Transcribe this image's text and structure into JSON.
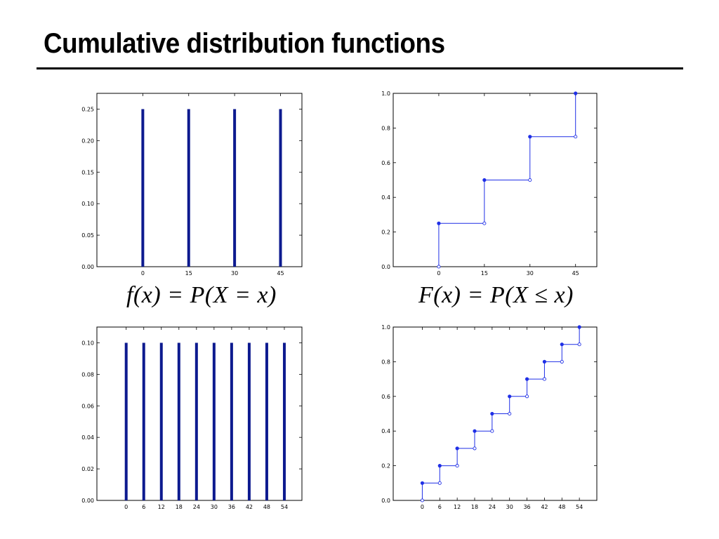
{
  "slide": {
    "title": "Cumulative distribution functions",
    "pmf_formula": "f(x) = P(X = x)",
    "cdf_formula": "F(x) = P(X ≤ x)"
  },
  "colors": {
    "bar": "#0d1a8f",
    "step": "#1f2fe6",
    "axis": "#000000"
  },
  "chart_data": [
    {
      "id": "pmf-top",
      "type": "bar",
      "x": [
        0,
        15,
        30,
        45
      ],
      "values": [
        0.25,
        0.25,
        0.25,
        0.25
      ],
      "xlim": [
        -15,
        52
      ],
      "ylim": [
        0,
        0.275
      ],
      "xticks": [
        0,
        15,
        30,
        45
      ],
      "yticks": [
        0,
        0.05,
        0.1,
        0.15,
        0.2,
        0.25
      ],
      "ydecimals": 2,
      "grid": false
    },
    {
      "id": "cdf-top",
      "type": "line",
      "x": [
        0,
        15,
        30,
        45
      ],
      "values": [
        0.25,
        0.5,
        0.75,
        1.0
      ],
      "xlim": [
        -15,
        52
      ],
      "ylim": [
        0,
        1.0
      ],
      "xticks": [
        0,
        15,
        30,
        45
      ],
      "yticks": [
        0,
        0.2,
        0.4,
        0.6,
        0.8,
        1.0
      ],
      "ydecimals": 1,
      "grid": false
    },
    {
      "id": "pmf-bottom",
      "type": "bar",
      "x": [
        0,
        6,
        12,
        18,
        24,
        30,
        36,
        42,
        48,
        54
      ],
      "values": [
        0.1,
        0.1,
        0.1,
        0.1,
        0.1,
        0.1,
        0.1,
        0.1,
        0.1,
        0.1
      ],
      "xlim": [
        -10,
        60
      ],
      "ylim": [
        0,
        0.11
      ],
      "xticks": [
        0,
        6,
        12,
        18,
        24,
        30,
        36,
        42,
        48,
        54
      ],
      "yticks": [
        0,
        0.02,
        0.04,
        0.06,
        0.08,
        0.1
      ],
      "ydecimals": 2,
      "grid": false
    },
    {
      "id": "cdf-bottom",
      "type": "line",
      "x": [
        0,
        6,
        12,
        18,
        24,
        30,
        36,
        42,
        48,
        54
      ],
      "values": [
        0.1,
        0.2,
        0.3,
        0.4,
        0.5,
        0.6,
        0.7,
        0.8,
        0.9,
        1.0
      ],
      "xlim": [
        -10,
        60
      ],
      "ylim": [
        0,
        1.0
      ],
      "xticks": [
        0,
        6,
        12,
        18,
        24,
        30,
        36,
        42,
        48,
        54
      ],
      "yticks": [
        0,
        0.2,
        0.4,
        0.6,
        0.8,
        1.0
      ],
      "ydecimals": 1,
      "grid": false
    }
  ]
}
